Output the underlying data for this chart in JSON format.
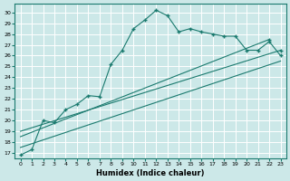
{
  "xlabel": "Humidex (Indice chaleur)",
  "bg_color": "#cce8e8",
  "grid_color": "#b0d8d8",
  "line_color": "#1a7a6e",
  "xlim": [
    -0.5,
    23.5
  ],
  "ylim": [
    16.5,
    30.8
  ],
  "xticks": [
    0,
    1,
    2,
    3,
    4,
    5,
    6,
    7,
    8,
    9,
    10,
    11,
    12,
    13,
    14,
    15,
    16,
    17,
    18,
    19,
    20,
    21,
    22,
    23
  ],
  "yticks": [
    17,
    18,
    19,
    20,
    21,
    22,
    23,
    24,
    25,
    26,
    27,
    28,
    29,
    30
  ],
  "curve_x": [
    0,
    1,
    2,
    3,
    4,
    5,
    6,
    7,
    8,
    9,
    10,
    11,
    12,
    13,
    14,
    15,
    16,
    17,
    18,
    19,
    20,
    21,
    22,
    23
  ],
  "curve_y": [
    16.8,
    17.3,
    20.0,
    19.8,
    21.0,
    21.5,
    22.3,
    22.2,
    25.2,
    26.5,
    28.5,
    29.3,
    30.2,
    29.7,
    28.2,
    28.5,
    28.2,
    28.0,
    27.8,
    27.8,
    26.5,
    26.5,
    27.3,
    26.0
  ],
  "line1_x": [
    0,
    23
  ],
  "line1_y": [
    17.5,
    25.5
  ],
  "line2_x": [
    0,
    22
  ],
  "line2_y": [
    18.5,
    27.5
  ],
  "line3_x": [
    0,
    23
  ],
  "line3_y": [
    19.0,
    26.5
  ]
}
